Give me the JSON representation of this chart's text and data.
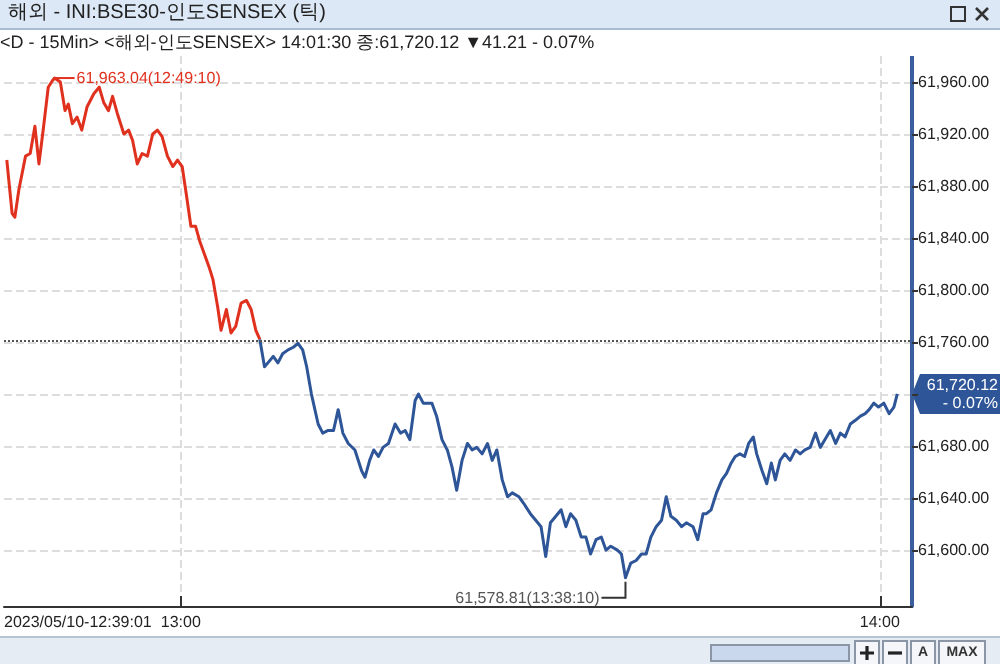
{
  "chart_data": {
    "type": "line",
    "title": "해외 - INI:BSE30-인도SENSEX (틱)",
    "subtitle": "<D - 15Min> <해외-인도SENSEX> 14:01:30 종:61,720.12 ▼41.21  - 0.07%",
    "xlim": [
      12.747,
      14.046
    ],
    "xticks": [
      {
        "value": 13,
        "label": "13:00"
      },
      {
        "value": 14,
        "label": "14:00"
      }
    ],
    "ylim": [
      61557,
      61980
    ],
    "yticks": [
      {
        "value": 61600,
        "label": "61,600.00"
      },
      {
        "value": 61640,
        "label": "61,640.00"
      },
      {
        "value": 61680,
        "label": "61,680.00"
      },
      {
        "value": 61720,
        "label": null
      },
      {
        "value": 61760,
        "label": "61,760.00"
      },
      {
        "value": 61800,
        "label": "61,800.00"
      },
      {
        "value": 61840,
        "label": "61,840.00"
      },
      {
        "value": 61880,
        "label": "61,880.00"
      },
      {
        "value": 61920,
        "label": "61,920.00"
      },
      {
        "value": 61960,
        "label": "61,960.00"
      }
    ],
    "grid": true,
    "line_style": "solid",
    "ref_lines": [
      {
        "axis": "y",
        "value": 61761.33,
        "label": null,
        "color": "#555555",
        "line_style": "dotted"
      }
    ],
    "annotations": [
      "2023/05/10-12:39:01",
      "A",
      "MAX",
      "61,720.12\n- 0.07%",
      {
        "text": "61,963.04(12:49:10)",
        "x": 12.8194,
        "y": 61963.04
      },
      {
        "text": "61,578.81(13:38:10)",
        "x": 13.6361,
        "y": 61578.81
      }
    ],
    "series": [
      {
        "color": "#e0301e",
        "x": [
          12.751,
          12.7586,
          12.7625,
          12.7682,
          12.7778,
          12.7845,
          12.7912,
          12.797,
          12.8037,
          12.8103,
          12.8162,
          12.8194,
          12.8276,
          12.8343,
          12.839,
          12.8448,
          12.8515,
          12.8582,
          12.8659,
          12.8755,
          12.8832,
          12.8898,
          12.8965,
          12.9023,
          12.909,
          12.9185,
          12.9253,
          12.931,
          12.9377,
          12.9445,
          12.9522,
          12.9598,
          12.9665,
          12.9732,
          12.9808,
          12.9885,
          12.9952,
          13.0019,
          13.0077,
          13.0144,
          13.0211,
          13.0268,
          13.0335,
          13.0402,
          13.046,
          13.0527,
          13.0575,
          13.0651,
          13.0718,
          13.0785,
          13.0862,
          13.0939,
          13.1006,
          13.1073,
          13.113
        ],
        "values": [
          61900,
          61859,
          61856,
          61877,
          61903,
          61905,
          61926,
          61897,
          61926,
          61956,
          61961,
          61963.04,
          61960,
          61938,
          61943,
          61928,
          61933,
          61923,
          61941,
          61951,
          61956,
          61944,
          61938,
          61949,
          61936,
          61920,
          61923,
          61915,
          61897,
          61905,
          61903,
          61920,
          61923,
          61918,
          61903,
          61895,
          61900,
          61895,
          61874,
          61849,
          61849,
          61838,
          61828,
          61818,
          61808,
          61787,
          61769,
          61785,
          61767,
          61772,
          61790,
          61792,
          61785,
          61769,
          61762
        ]
      },
      {
        "color": "#2d5597",
        "x": [
          13.113,
          13.1197,
          13.1245,
          13.1322,
          13.1389,
          13.1456,
          13.1533,
          13.1609,
          13.1676,
          13.1743,
          13.18,
          13.1868,
          13.1964,
          13.203,
          13.2107,
          13.2184,
          13.2251,
          13.2318,
          13.2395,
          13.249,
          13.2586,
          13.2634,
          13.2701,
          13.2759,
          13.2826,
          13.2893,
          13.297,
          13.3065,
          13.3142,
          13.3209,
          13.3276,
          13.3352,
          13.34,
          13.3467,
          13.3592,
          13.3659,
          13.3736,
          13.3812,
          13.3879,
          13.3946,
          13.4023,
          13.41,
          13.4167,
          13.4234,
          13.431,
          13.4387,
          13.4454,
          13.4521,
          13.4598,
          13.4674,
          13.4741,
          13.4837,
          13.4904,
          13.5,
          13.5077,
          13.5153,
          13.522,
          13.5287,
          13.5364,
          13.544,
          13.5508,
          13.5575,
          13.5651,
          13.5728,
          13.5795,
          13.5862,
          13.5939,
          13.6015,
          13.6082,
          13.615,
          13.6245,
          13.6303,
          13.6361,
          13.6437,
          13.6513,
          13.659,
          13.6657,
          13.6724,
          13.68,
          13.6877,
          13.6944,
          13.7011,
          13.7088,
          13.7165,
          13.7232,
          13.7328,
          13.7395,
          13.7471,
          13.7519,
          13.7586,
          13.7663,
          13.774,
          13.7807,
          13.7874,
          13.7931,
          13.7998,
          13.8065,
          13.8123,
          13.819,
          13.8238,
          13.8315,
          13.8382,
          13.8448,
          13.8505,
          13.8573,
          13.864,
          13.8716,
          13.8793,
          13.886,
          13.8927,
          13.9003,
          13.908,
          13.9148,
          13.9215,
          13.9292,
          13.9368,
          13.9435,
          13.9502,
          13.9578,
          13.9655,
          13.9722,
          13.979,
          13.9847,
          13.9914,
          13.9981,
          14.0057,
          14.0133,
          14.0201,
          14.025
        ],
        "values": [
          61762,
          61741,
          61744,
          61749,
          61744,
          61751,
          61754,
          61756,
          61759,
          61754,
          61741,
          61720,
          61697,
          61690,
          61692,
          61692,
          61708,
          61690,
          61682,
          61677,
          61661,
          61656,
          61669,
          61677,
          61672,
          61679,
          61682,
          61697,
          61690,
          61692,
          61685,
          61715,
          61720,
          61713,
          61713,
          61703,
          61685,
          61677,
          61664,
          61646,
          61669,
          61682,
          61677,
          61679,
          61674,
          61682,
          61669,
          61677,
          61654,
          61641,
          61644,
          61641,
          61636,
          61628,
          61623,
          61618,
          61595,
          61621,
          61626,
          61631,
          61618,
          61628,
          61623,
          61610,
          61610,
          61597,
          61608,
          61610,
          61600,
          61603,
          61600,
          61597,
          61578.81,
          61590,
          61592,
          61597,
          61597,
          61610,
          61618,
          61623,
          61641,
          61626,
          61623,
          61618,
          61621,
          61618,
          61608,
          61628,
          61628,
          61631,
          61644,
          61654,
          61659,
          61667,
          61672,
          61674,
          61672,
          61682,
          61687,
          61674,
          61661,
          61651,
          61667,
          61654,
          61669,
          61674,
          61669,
          61677,
          61674,
          61677,
          61679,
          61690,
          61679,
          61685,
          61692,
          61682,
          61690,
          61687,
          61697,
          61700,
          61703,
          61705,
          61708,
          61713,
          61710,
          61713,
          61705,
          61710,
          61720.12
        ]
      }
    ]
  }
}
